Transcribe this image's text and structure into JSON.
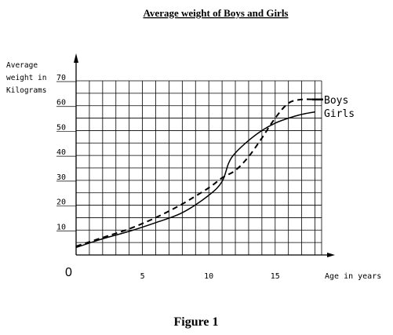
{
  "chart_data": {
    "type": "line",
    "title": "Average weight of Boys and Girls",
    "ylabel": [
      "Average",
      "weight in",
      "Kilograms"
    ],
    "xlabel": "Age in years",
    "origin_label": "0",
    "xlim": [
      0,
      18.5
    ],
    "ylim": [
      0,
      70
    ],
    "x_ticks": [
      {
        "value": 5,
        "label": "5"
      },
      {
        "value": 10,
        "label": "10"
      },
      {
        "value": 15,
        "label": "15"
      }
    ],
    "y_ticks": [
      {
        "value": 10,
        "label": "10"
      },
      {
        "value": 20,
        "label": "20"
      },
      {
        "value": 30,
        "label": "30"
      },
      {
        "value": 40,
        "label": "40"
      },
      {
        "value": 50,
        "label": "50"
      },
      {
        "value": 60,
        "label": "60"
      },
      {
        "value": 70,
        "label": "70"
      }
    ],
    "grid": true,
    "series": [
      {
        "name": "Boys",
        "style": "dashed",
        "points": [
          [
            0,
            3.5
          ],
          [
            2,
            7
          ],
          [
            4,
            10.5
          ],
          [
            6,
            15
          ],
          [
            8,
            20.5
          ],
          [
            10,
            27
          ],
          [
            11,
            31
          ],
          [
            12,
            34
          ],
          [
            13,
            39.5
          ],
          [
            14,
            47
          ],
          [
            15,
            55
          ],
          [
            16,
            61
          ],
          [
            17,
            62.5
          ],
          [
            18,
            62.5
          ]
        ]
      },
      {
        "name": "Girls",
        "style": "solid",
        "points": [
          [
            0,
            3
          ],
          [
            2,
            6.5
          ],
          [
            4,
            9.5
          ],
          [
            6,
            13
          ],
          [
            8,
            17
          ],
          [
            10,
            24
          ],
          [
            11,
            29.5
          ],
          [
            11.5,
            37
          ],
          [
            12,
            41
          ],
          [
            13,
            46
          ],
          [
            14,
            50
          ],
          [
            15,
            53
          ],
          [
            16,
            55
          ],
          [
            17,
            56.5
          ],
          [
            18,
            57.5
          ]
        ]
      }
    ]
  },
  "caption": "Figure 1"
}
